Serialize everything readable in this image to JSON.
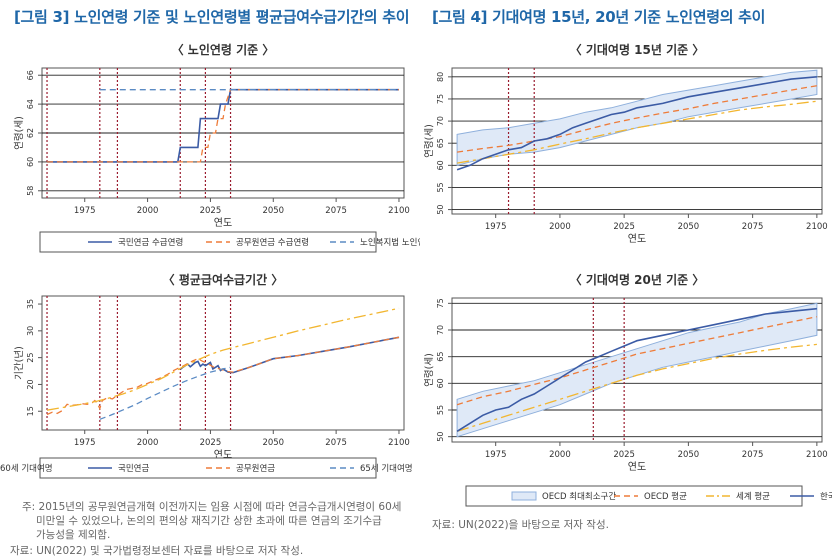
{
  "fig3": {
    "title": "[그림 3] 노인연령 기준 및 노인연령별 평균급여수급기간의 추이",
    "note_lines": [
      "주: 2015년의 공무원연금개혁 이전까지는 임용 시점에 따라 연금수급개시연령이 60세",
      "미만일 수 있었으나, 논의의 편의상 재직기간 상한 초과에 따른 연금의 조기수급",
      "가능성을 제외함."
    ],
    "source": "자료: UN(2022) 및 국가법령정보센터 자료를 바탕으로 저자 작성."
  },
  "fig4": {
    "title": "[그림 4] 기대여명 15년, 20년 기준 노인연령의 추이",
    "source": "자료: UN(2022)을 바탕으로 저자 작성."
  },
  "colors": {
    "navy": "#3b5ba5",
    "orange": "#ee7c3a",
    "steel": "#5b8bc4",
    "gold": "#f2b630",
    "band_fill": "#dfe9f7",
    "band_line": "#8fb0dc",
    "vline": "#9a1c2e"
  },
  "chart_data": [
    {
      "id": "c1",
      "type": "line",
      "title": "〈 노인연령 기준 〉",
      "xlabel": "연도",
      "ylabel": "연령(세)",
      "xlim": [
        1958,
        2102
      ],
      "ylim": [
        57.5,
        66.5
      ],
      "xticks": [
        1975,
        2000,
        2025,
        2050,
        2075,
        2100
      ],
      "yticks": [
        58,
        60,
        62,
        64,
        66
      ],
      "hgrid": [
        58,
        60,
        62,
        64,
        66
      ],
      "vlines": [
        1960,
        1981,
        1988,
        2013,
        2023,
        2033
      ],
      "series": [
        {
          "name": "국민연금 수급연령",
          "color": "navy",
          "dash": "",
          "x": [
            1960,
            2012,
            2013,
            2016,
            2017,
            2020,
            2021,
            2024,
            2025,
            2028,
            2029,
            2032,
            2033,
            2100
          ],
          "y": [
            60,
            60,
            61,
            61,
            61,
            61,
            63,
            63,
            63,
            63,
            64,
            64,
            65,
            65
          ]
        },
        {
          "name": "공무원연금 수급연령",
          "color": "orange",
          "dash": "6,4",
          "x": [
            1960,
            2021,
            2022,
            2024,
            2025,
            2027,
            2028,
            2030,
            2031,
            2033,
            2100
          ],
          "y": [
            60,
            60,
            61,
            61,
            62,
            62,
            63,
            63,
            64,
            65,
            65
          ]
        },
        {
          "name": "노인복지법 노인연령",
          "color": "steel",
          "dash": "6,4",
          "x": [
            1981,
            2100
          ],
          "y": [
            65,
            65
          ]
        }
      ]
    },
    {
      "id": "c2",
      "type": "line",
      "title": "〈 평균급여수급기간 〉",
      "xlabel": "연도",
      "ylabel": "기간(년)",
      "xlim": [
        1958,
        2102
      ],
      "ylim": [
        11.5,
        36.5
      ],
      "xticks": [
        1975,
        2000,
        2025,
        2050,
        2075,
        2100
      ],
      "yticks": [
        15,
        20,
        25,
        30,
        35
      ],
      "hgrid": [],
      "vlines": [
        1960,
        1981,
        1988,
        2013,
        2023,
        2033
      ],
      "series": [
        {
          "name": "국민연금",
          "color": "navy",
          "dash": "",
          "x": [
            2013,
            2014,
            2015,
            2016,
            2017,
            2018,
            2019,
            2020,
            2021,
            2022,
            2023,
            2024,
            2025,
            2026,
            2027,
            2028,
            2029,
            2030,
            2032,
            2034,
            2040,
            2050,
            2060,
            2070,
            2080,
            2090,
            2100
          ],
          "y": [
            22.8,
            23.2,
            23.5,
            23.8,
            23.3,
            23.7,
            24.1,
            24.3,
            23.4,
            23.8,
            23.5,
            23.8,
            24.1,
            22.9,
            23.2,
            23.5,
            22.6,
            22.9,
            22.3,
            22.2,
            23.1,
            24.8,
            25.4,
            26.2,
            27,
            27.9,
            28.8
          ]
        },
        {
          "name": "공무원연금",
          "color": "orange",
          "dash": "6,4",
          "x": [
            1960,
            1962,
            1964,
            1966,
            1968,
            1970,
            1972,
            1974,
            1976,
            1978,
            1979,
            1980,
            1981,
            1982,
            1984,
            1986,
            1988,
            1990,
            1992,
            1994,
            1996,
            1998,
            2000,
            2002,
            2004,
            2006,
            2008,
            2010,
            2012,
            2014,
            2016,
            2018,
            2020,
            2022,
            2024,
            2026,
            2028,
            2030,
            2032,
            2034,
            2040,
            2050,
            2060,
            2070,
            2080,
            2090,
            2100
          ],
          "y": [
            14.4,
            14.8,
            14.6,
            15.1,
            16.3,
            16.1,
            16.2,
            16.4,
            16.3,
            16.6,
            17,
            16.5,
            15.5,
            17,
            17.5,
            17.3,
            18,
            18.6,
            19.1,
            19.3,
            19.5,
            20,
            20.2,
            20.6,
            21,
            21.4,
            21.9,
            22.5,
            23,
            23.4,
            23.9,
            24.4,
            24.8,
            24.3,
            23.9,
            23.3,
            23,
            22.7,
            22.4,
            22.3,
            23.1,
            24.8,
            25.4,
            26.2,
            27,
            27.9,
            28.8
          ]
        },
        {
          "name": "65세 기대여명",
          "color": "steel",
          "dash": "6,4",
          "x": [
            1981,
            1985,
            1990,
            1995,
            2000,
            2005,
            2010,
            2015,
            2020,
            2025,
            2030,
            2033
          ],
          "y": [
            13.5,
            14.2,
            15.2,
            16.2,
            17.4,
            18.5,
            19.6,
            20.6,
            21.5,
            22.3,
            22.9,
            23.2
          ]
        },
        {
          "name": "60세 기대여명",
          "color": "gold",
          "dash": "12,4,3,4",
          "x": [
            1960,
            1965,
            1970,
            1975,
            1980,
            1985,
            1990,
            1995,
            2000,
            2005,
            2010,
            2015,
            2020,
            2025,
            2030,
            2040,
            2050,
            2060,
            2070,
            2080,
            2090,
            2100
          ],
          "y": [
            15.2,
            15.6,
            16,
            16.4,
            16.9,
            17.5,
            18.2,
            19,
            20,
            21,
            22.2,
            23.5,
            24.6,
            25.6,
            26.4,
            27.6,
            28.8,
            30,
            31.1,
            32.2,
            33.2,
            34.2
          ]
        }
      ]
    },
    {
      "id": "c3",
      "type": "line",
      "title": "〈 기대여명 15년 기준 〉",
      "xlabel": "연도",
      "ylabel": "연령(세)",
      "xlim": [
        1958,
        2102
      ],
      "ylim": [
        49,
        82
      ],
      "xticks": [
        1975,
        2000,
        2025,
        2050,
        2075,
        2100
      ],
      "yticks": [
        50,
        55,
        60,
        65,
        70,
        75,
        80
      ],
      "hgrid": [
        50,
        55,
        60,
        65,
        70,
        75,
        80
      ],
      "vlines": [
        1980,
        1990
      ],
      "band": {
        "x": [
          1960,
          1970,
          1980,
          1990,
          2000,
          2010,
          2020,
          2030,
          2040,
          2050,
          2060,
          2070,
          2080,
          2090,
          2100
        ],
        "lo": [
          60,
          61.5,
          62.5,
          63,
          64,
          65.5,
          67,
          68.5,
          69.5,
          71,
          72,
          73,
          74,
          75,
          76
        ],
        "hi": [
          67,
          68,
          68.5,
          69.5,
          70.5,
          72,
          73,
          74.5,
          76,
          77,
          78,
          79,
          80,
          81,
          81.5
        ]
      },
      "series": [
        {
          "name": "OECD 평균",
          "color": "orange",
          "dash": "6,4",
          "x": [
            1960,
            1970,
            1980,
            1990,
            2000,
            2010,
            2020,
            2030,
            2040,
            2050,
            2060,
            2070,
            2080,
            2090,
            2100
          ],
          "y": [
            63,
            63.8,
            64.5,
            65.5,
            66.5,
            68,
            69.5,
            70.7,
            71.8,
            72.8,
            74,
            75,
            76,
            77,
            78
          ]
        },
        {
          "name": "세계 평균",
          "color": "gold",
          "dash": "12,4,3,4",
          "x": [
            1960,
            1970,
            1980,
            1990,
            2000,
            2010,
            2020,
            2030,
            2040,
            2050,
            2060,
            2070,
            2080,
            2090,
            2100
          ],
          "y": [
            60.5,
            61.5,
            62.5,
            63.5,
            64.8,
            66,
            67.3,
            68.5,
            69.5,
            70.5,
            71.5,
            72.5,
            73.2,
            73.8,
            74.5
          ]
        },
        {
          "name": "한국",
          "color": "navy",
          "dash": "",
          "x": [
            1960,
            1965,
            1970,
            1975,
            1980,
            1985,
            1990,
            1995,
            2000,
            2005,
            2010,
            2015,
            2020,
            2025,
            2030,
            2040,
            2050,
            2060,
            2070,
            2080,
            2090,
            2100
          ],
          "y": [
            59,
            60,
            61.5,
            62.5,
            63.5,
            64,
            65.5,
            66,
            67,
            68.5,
            69.5,
            70.5,
            71.5,
            72,
            73,
            74,
            75.5,
            76.5,
            77.5,
            78.5,
            79.5,
            80
          ]
        }
      ]
    },
    {
      "id": "c4",
      "type": "line",
      "title": "〈 기대여명 20년 기준 〉",
      "xlabel": "연도",
      "ylabel": "연령(세)",
      "xlim": [
        1958,
        2102
      ],
      "ylim": [
        49,
        76
      ],
      "xticks": [
        1975,
        2000,
        2025,
        2050,
        2075,
        2100
      ],
      "yticks": [
        50,
        55,
        60,
        65,
        70,
        75
      ],
      "hgrid": [
        50,
        55,
        60,
        65,
        70,
        75
      ],
      "vlines": [
        2013,
        2025
      ],
      "band": {
        "x": [
          1960,
          1970,
          1980,
          1990,
          2000,
          2010,
          2020,
          2030,
          2040,
          2050,
          2060,
          2070,
          2080,
          2090,
          2100
        ],
        "lo": [
          50,
          51.5,
          53,
          54.5,
          56,
          58,
          60,
          61.5,
          63,
          64,
          65,
          66,
          67,
          68,
          69
        ],
        "hi": [
          57,
          58.5,
          59.5,
          60.5,
          62,
          63.5,
          65,
          66.5,
          68,
          69.5,
          70.5,
          71.5,
          73,
          74,
          75
        ]
      },
      "legend": [
        "OECD 최대최소구간",
        "OECD 평균",
        "세계 평균",
        "한국"
      ],
      "series": [
        {
          "name": "OECD 평균",
          "color": "orange",
          "dash": "6,4",
          "x": [
            1960,
            1970,
            1980,
            1990,
            2000,
            2010,
            2020,
            2030,
            2040,
            2050,
            2060,
            2070,
            2080,
            2090,
            2100
          ],
          "y": [
            56,
            57.5,
            58.5,
            59.8,
            61,
            62.5,
            64,
            65.5,
            66.5,
            67.5,
            68.5,
            69.5,
            70.5,
            71.5,
            72.5
          ]
        },
        {
          "name": "세계 평균",
          "color": "gold",
          "dash": "12,4,3,4",
          "x": [
            1960,
            1970,
            1980,
            1990,
            2000,
            2010,
            2020,
            2030,
            2040,
            2050,
            2060,
            2070,
            2080,
            2090,
            2100
          ],
          "y": [
            51,
            52.5,
            54,
            55.5,
            57,
            58.5,
            60,
            61.5,
            62.7,
            63.7,
            64.7,
            65.5,
            66.2,
            66.8,
            67.3
          ]
        },
        {
          "name": "한국",
          "color": "navy",
          "dash": "",
          "x": [
            1960,
            1965,
            1970,
            1975,
            1980,
            1985,
            1990,
            1995,
            2000,
            2005,
            2010,
            2015,
            2020,
            2025,
            2030,
            2040,
            2050,
            2060,
            2070,
            2080,
            2090,
            2100
          ],
          "y": [
            51,
            52.5,
            54,
            55,
            55.5,
            57,
            58,
            59.5,
            61,
            62.5,
            64,
            65,
            66,
            67,
            68,
            69,
            70,
            71,
            72,
            73,
            73.5,
            74
          ]
        }
      ]
    }
  ]
}
